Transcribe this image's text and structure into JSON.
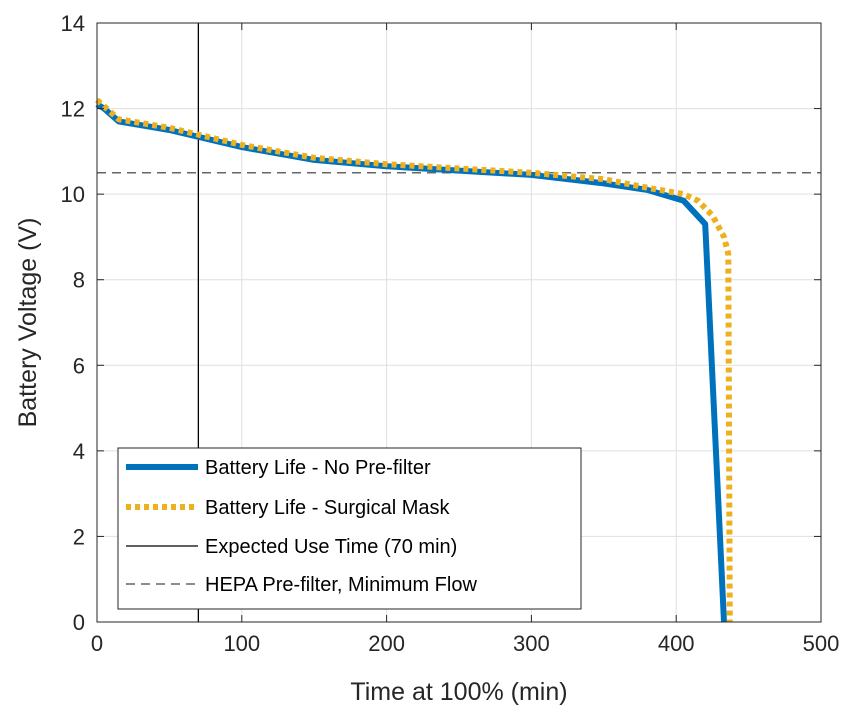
{
  "chart_data": {
    "type": "line",
    "title": "",
    "xlabel": "Time at 100% (min)",
    "ylabel": "Battery Voltage (V)",
    "xlim": [
      0,
      500
    ],
    "ylim": [
      0,
      14
    ],
    "xticks": [
      "0",
      "100",
      "200",
      "300",
      "400",
      "500"
    ],
    "yticks": [
      "0",
      "2",
      "4",
      "6",
      "8",
      "10",
      "12",
      "14"
    ],
    "grid": true,
    "legend_position": "bottom-left",
    "series": [
      {
        "name": "Battery Life - No Pre-filter",
        "color": "#0072BD",
        "style": "solid-thick",
        "x": [
          0,
          5,
          15,
          50,
          100,
          150,
          200,
          250,
          300,
          350,
          380,
          405,
          420,
          433
        ],
        "y": [
          12.1,
          12.0,
          11.7,
          11.5,
          11.1,
          10.8,
          10.65,
          10.55,
          10.45,
          10.25,
          10.1,
          9.85,
          9.3,
          0
        ]
      },
      {
        "name": "Battery Life - Surgical Mask",
        "color": "#EDB120",
        "style": "dotted-thick",
        "x": [
          0,
          5,
          15,
          50,
          100,
          150,
          200,
          250,
          300,
          350,
          380,
          405,
          415,
          425,
          433,
          436,
          437
        ],
        "y": [
          12.2,
          12.05,
          11.75,
          11.55,
          11.15,
          10.85,
          10.7,
          10.6,
          10.5,
          10.35,
          10.15,
          10.0,
          9.85,
          9.5,
          9.0,
          8.6,
          0
        ]
      },
      {
        "name": "Expected Use Time (70 min)",
        "color": "#000000",
        "style": "solid-thin",
        "vertical_x": 70
      },
      {
        "name": "HEPA Pre-filter, Minimum Flow",
        "color": "#666666",
        "style": "dashed",
        "horizontal_y": 10.5
      }
    ]
  }
}
